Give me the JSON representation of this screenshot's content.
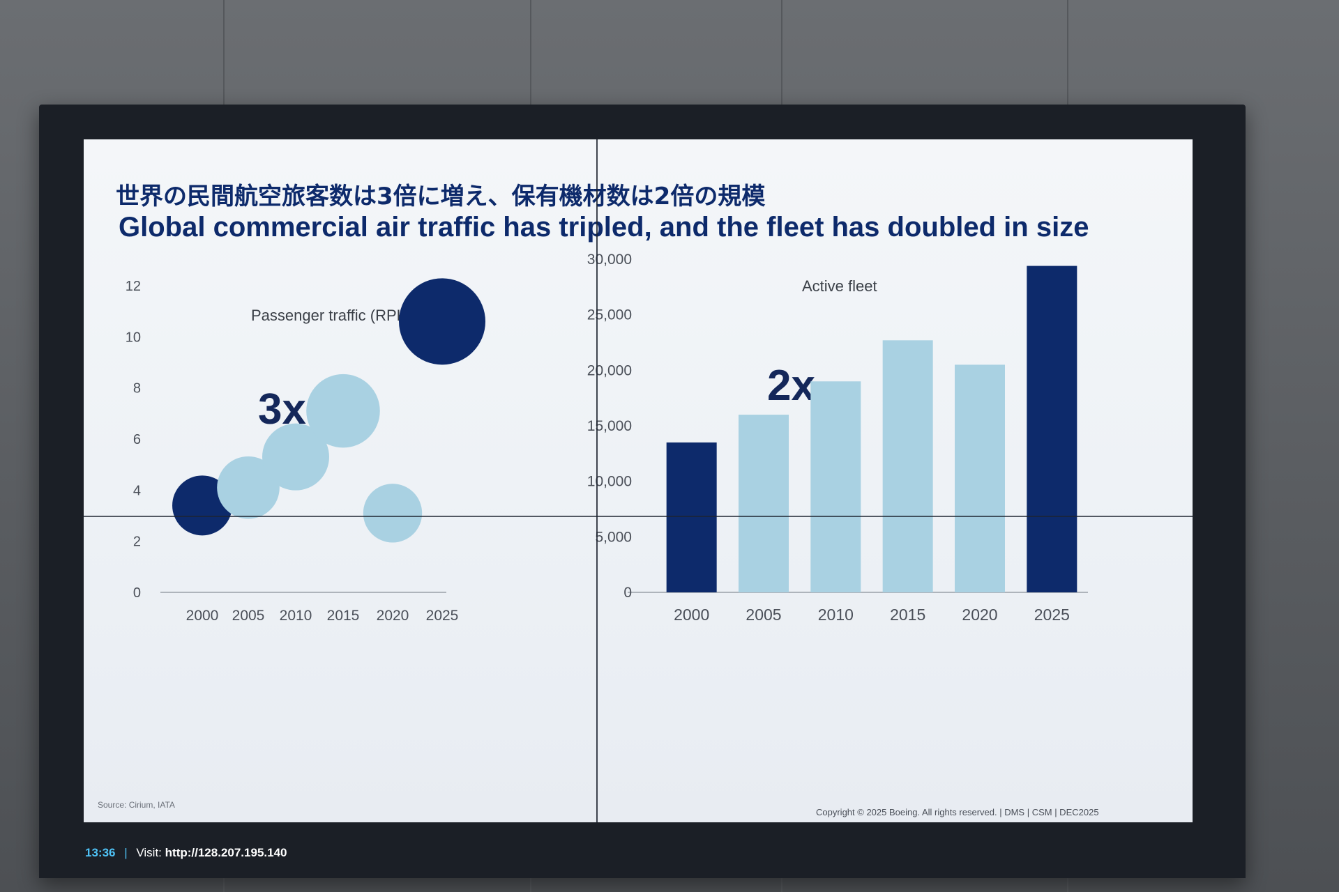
{
  "slide": {
    "title_jp": "世界の民間航空旅客数は3倍に増え、保有機材数は2倍の規模",
    "title_en": "Global commercial air traffic has tripled, and the fleet has doubled in size",
    "source": "Source: Cirium, IATA",
    "copyright": "Copyright © 2025 Boeing. All rights reserved.  | DMS |  CSM  |  DEC2025"
  },
  "status_bar": {
    "time": "13:36",
    "separator": "|",
    "visit_label": "Visit:",
    "url": "http://128.207.195.140"
  },
  "colors": {
    "dark": "#0d2a6b",
    "light": "#a9d1e2",
    "title": "#0d2a6b"
  },
  "chart_data": [
    {
      "type": "scatter",
      "title": "Passenger traffic (RPK in trillion)",
      "annotation": "3x",
      "categories": [
        "2000",
        "2005",
        "2010",
        "2015",
        "2020",
        "2025"
      ],
      "values": [
        3.4,
        4.1,
        5.3,
        7.1,
        3.1,
        10.6
      ],
      "highlight": [
        true,
        false,
        false,
        false,
        false,
        true
      ],
      "ylim": [
        0,
        12
      ],
      "yticks": [
        "0",
        "2",
        "4",
        "6",
        "8",
        "10",
        "12"
      ],
      "grid": false
    },
    {
      "type": "bar",
      "title": "Active fleet",
      "annotation": "2x",
      "categories": [
        "2000",
        "2005",
        "2010",
        "2015",
        "2020",
        "2025"
      ],
      "values": [
        13500,
        16000,
        19000,
        22700,
        20500,
        29400
      ],
      "highlight": [
        true,
        false,
        false,
        false,
        false,
        true
      ],
      "ylim": [
        0,
        30000
      ],
      "yticks": [
        "0",
        "5,000",
        "10,000",
        "15,000",
        "20,000",
        "25,000",
        "30,000"
      ],
      "grid": false
    }
  ]
}
